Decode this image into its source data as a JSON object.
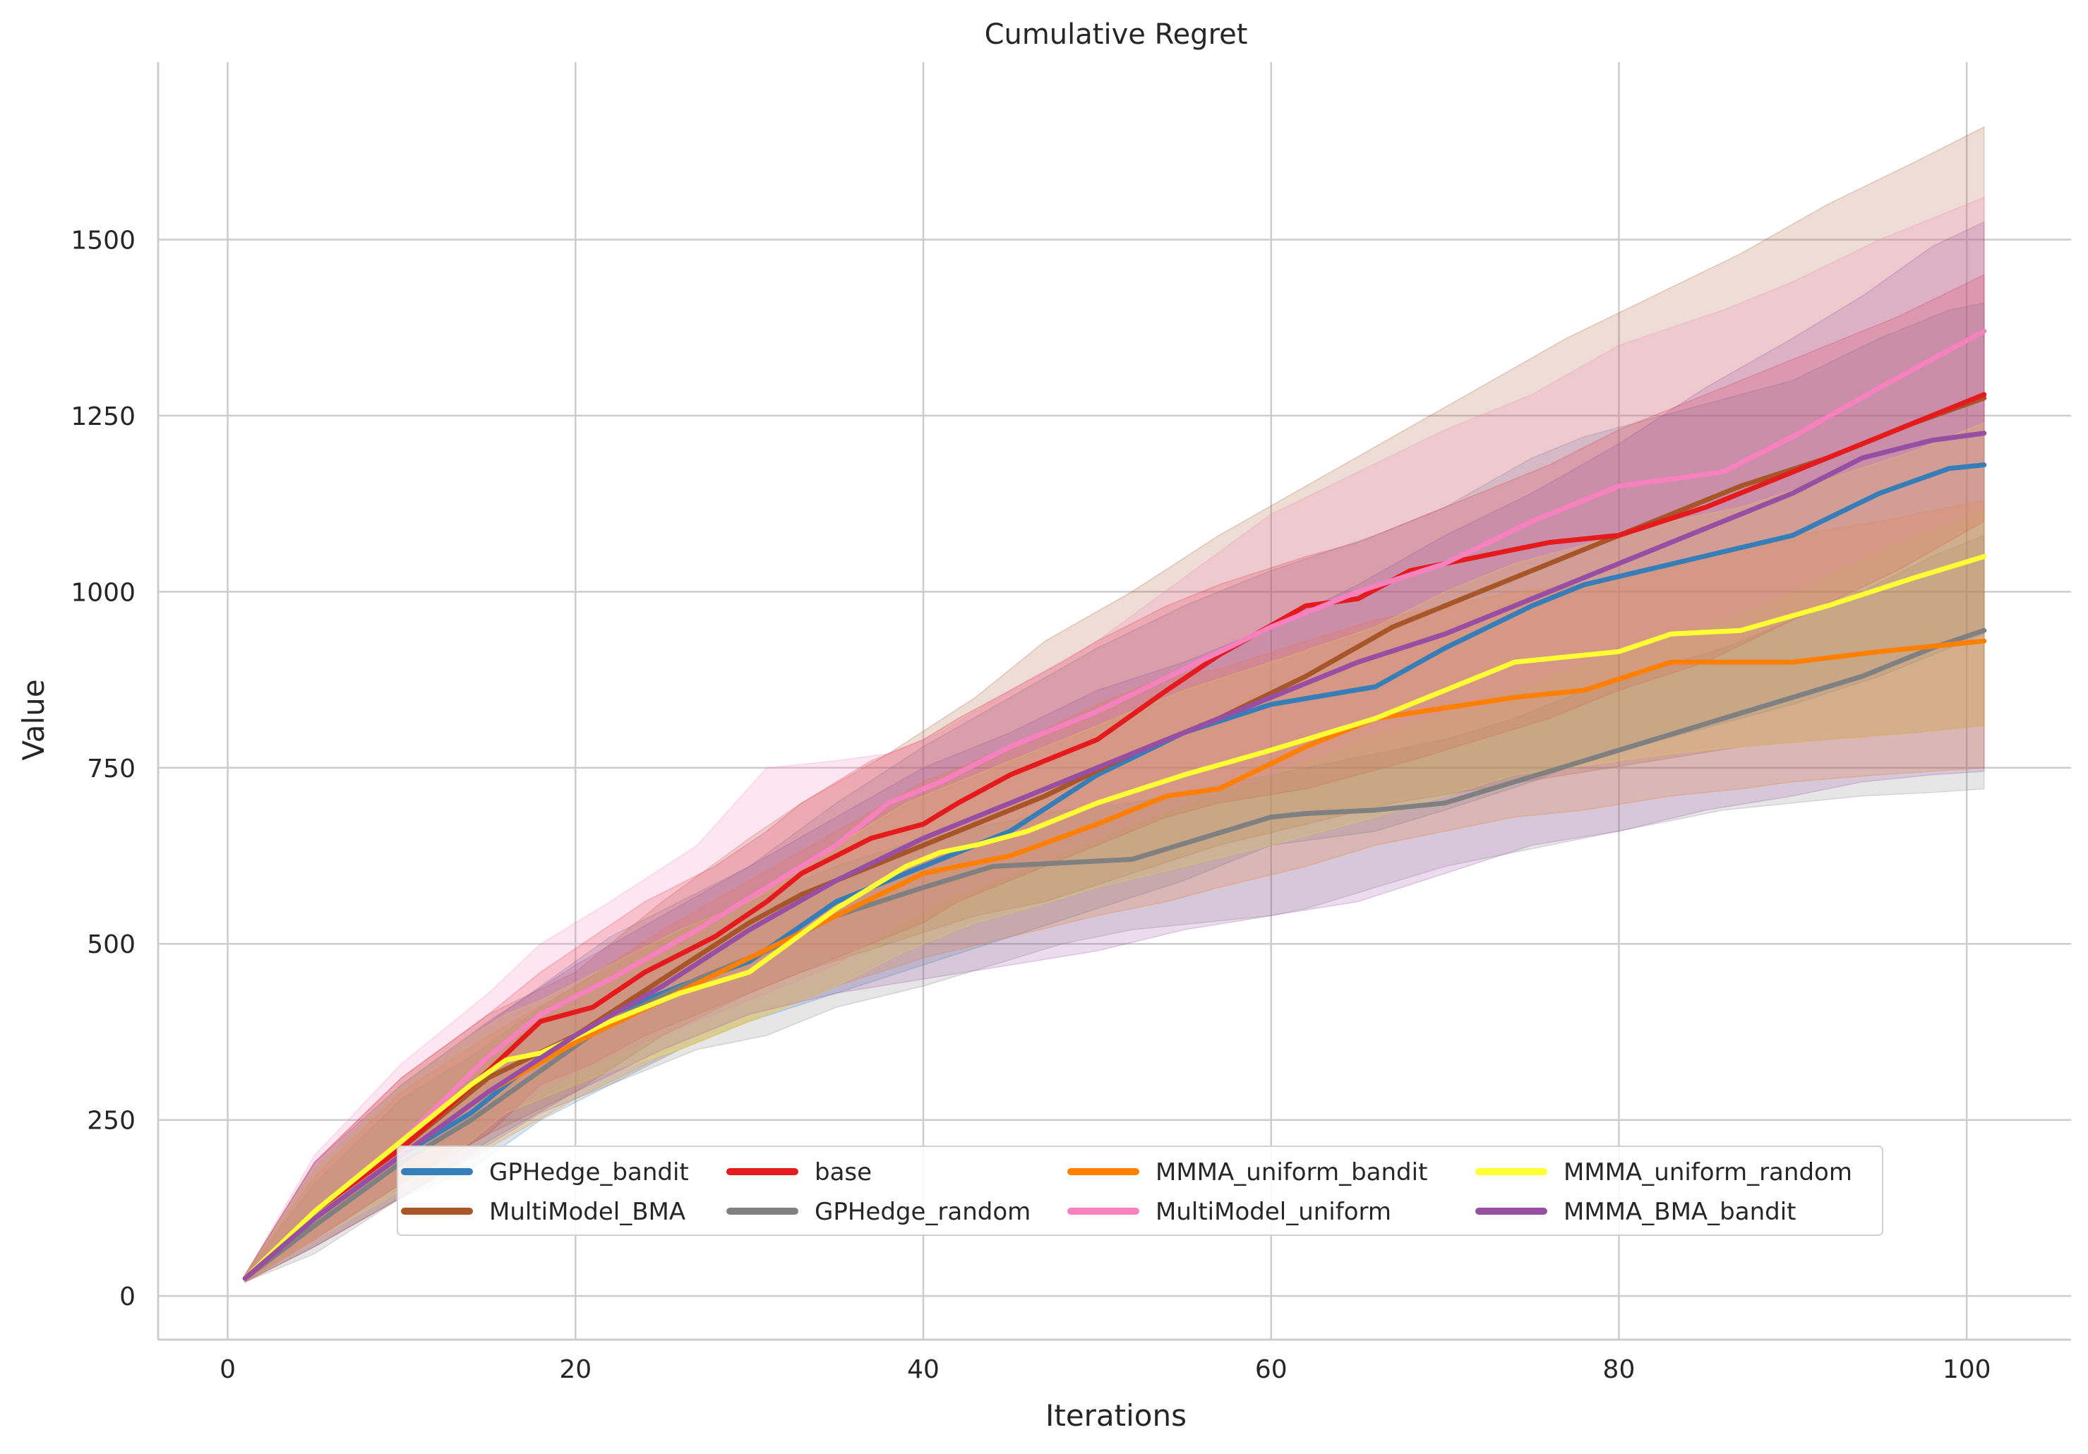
{
  "chart_data": {
    "type": "line",
    "title": "Cumulative Regret",
    "xlabel": "Iterations",
    "ylabel": "Value",
    "xlim": [
      -4,
      106
    ],
    "ylim": [
      -62,
      1752
    ],
    "xticks": [
      0,
      20,
      40,
      60,
      80,
      100
    ],
    "yticks": [
      0,
      250,
      500,
      750,
      1000,
      1250,
      1500
    ],
    "grid": true,
    "legend_position": "lower-center",
    "legend_columns": 4,
    "series": [
      {
        "name": "GPHedge_bandit",
        "color": "#377eb8",
        "x": [
          1,
          5,
          10,
          14,
          18,
          22,
          26,
          30,
          35,
          40,
          45,
          50,
          55,
          60,
          66,
          70,
          75,
          78,
          84,
          90,
          95,
          99,
          101
        ],
        "y": [
          25,
          110,
          200,
          260,
          340,
          400,
          440,
          475,
          560,
          610,
          660,
          740,
          800,
          840,
          865,
          920,
          980,
          1010,
          1045,
          1080,
          1140,
          1175,
          1180
        ],
        "upper": [
          30,
          180,
          300,
          370,
          440,
          510,
          560,
          610,
          700,
          780,
          850,
          920,
          980,
          1030,
          1080,
          1120,
          1190,
          1220,
          1260,
          1300,
          1360,
          1400,
          1410
        ],
        "lower": [
          20,
          70,
          140,
          180,
          250,
          300,
          350,
          390,
          430,
          470,
          510,
          550,
          590,
          640,
          660,
          690,
          730,
          760,
          800,
          840,
          880,
          920,
          940
        ]
      },
      {
        "name": "MultiModel_BMA",
        "color": "#a65628",
        "x": [
          1,
          5,
          10,
          15,
          20,
          25,
          30,
          33,
          38,
          43,
          47,
          52,
          57,
          62,
          67,
          72,
          77,
          82,
          87,
          92,
          97,
          101
        ],
        "y": [
          25,
          120,
          210,
          310,
          370,
          450,
          530,
          570,
          620,
          670,
          710,
          770,
          820,
          880,
          950,
          1000,
          1050,
          1100,
          1150,
          1190,
          1240,
          1275
        ],
        "upper": [
          30,
          190,
          310,
          400,
          460,
          560,
          650,
          700,
          770,
          850,
          930,
          1000,
          1080,
          1150,
          1220,
          1290,
          1360,
          1420,
          1480,
          1550,
          1610,
          1660
        ],
        "lower": [
          20,
          80,
          160,
          230,
          290,
          370,
          430,
          460,
          500,
          540,
          560,
          600,
          640,
          670,
          700,
          720,
          740,
          760,
          780,
          790,
          800,
          810
        ]
      },
      {
        "name": "base",
        "color": "#e41a1c",
        "x": [
          1,
          5,
          10,
          15,
          18,
          21,
          24,
          28,
          31,
          33,
          37,
          40,
          42,
          45,
          48,
          50,
          54,
          57,
          62,
          65,
          68,
          72,
          76,
          80,
          85,
          90,
          96,
          101
        ],
        "y": [
          25,
          120,
          210,
          320,
          390,
          410,
          460,
          510,
          560,
          600,
          650,
          670,
          700,
          740,
          770,
          790,
          860,
          910,
          980,
          990,
          1030,
          1050,
          1070,
          1080,
          1120,
          1170,
          1230,
          1280
        ],
        "upper": [
          30,
          190,
          310,
          400,
          460,
          510,
          560,
          610,
          660,
          700,
          760,
          790,
          820,
          860,
          900,
          930,
          980,
          1010,
          1050,
          1070,
          1100,
          1140,
          1180,
          1230,
          1280,
          1330,
          1390,
          1450
        ],
        "lower": [
          20,
          80,
          160,
          230,
          300,
          330,
          370,
          410,
          440,
          460,
          500,
          530,
          560,
          590,
          620,
          640,
          680,
          700,
          720,
          740,
          760,
          790,
          820,
          860,
          900,
          960,
          1030,
          1100
        ]
      },
      {
        "name": "GPHedge_random",
        "color": "#808080",
        "x": [
          1,
          5,
          10,
          14,
          18,
          22,
          27,
          31,
          35,
          40,
          44,
          48,
          52,
          56,
          60,
          62,
          66,
          70,
          74,
          78,
          82,
          86,
          90,
          94,
          98,
          101
        ],
        "y": [
          25,
          100,
          190,
          250,
          320,
          390,
          450,
          490,
          540,
          580,
          610,
          615,
          620,
          650,
          680,
          685,
          690,
          700,
          730,
          760,
          790,
          820,
          850,
          880,
          920,
          945
        ],
        "upper": [
          30,
          160,
          280,
          340,
          410,
          470,
          530,
          570,
          610,
          650,
          670,
          690,
          700,
          720,
          740,
          750,
          770,
          790,
          820,
          860,
          890,
          920,
          960,
          1000,
          1050,
          1080
        ],
        "lower": [
          20,
          60,
          140,
          200,
          260,
          300,
          350,
          370,
          410,
          440,
          470,
          500,
          520,
          530,
          540,
          550,
          580,
          610,
          630,
          650,
          670,
          690,
          700,
          710,
          715,
          720
        ]
      },
      {
        "name": "MMMA_uniform_bandit",
        "color": "#ff7f00",
        "x": [
          1,
          5,
          10,
          15,
          20,
          25,
          30,
          35,
          40,
          45,
          50,
          54,
          57,
          62,
          66,
          70,
          74,
          78,
          83,
          87,
          90,
          95,
          101
        ],
        "y": [
          25,
          110,
          200,
          290,
          360,
          420,
          480,
          540,
          600,
          625,
          670,
          710,
          720,
          780,
          820,
          835,
          850,
          860,
          900,
          900,
          900,
          915,
          930
        ],
        "upper": [
          30,
          170,
          290,
          370,
          440,
          520,
          590,
          660,
          730,
          780,
          840,
          880,
          890,
          930,
          960,
          980,
          1000,
          1010,
          1040,
          1060,
          1080,
          1100,
          1130
        ],
        "lower": [
          20,
          70,
          140,
          210,
          280,
          340,
          390,
          440,
          480,
          510,
          540,
          560,
          580,
          610,
          640,
          660,
          680,
          690,
          710,
          720,
          730,
          740,
          750
        ]
      },
      {
        "name": "MultiModel_uniform",
        "color": "#f781bf",
        "x": [
          1,
          5,
          10,
          15,
          18,
          22,
          27,
          31,
          35,
          38,
          41,
          45,
          50,
          55,
          60,
          65,
          70,
          75,
          80,
          86,
          90,
          95,
          101
        ],
        "y": [
          25,
          120,
          220,
          340,
          400,
          450,
          520,
          580,
          640,
          700,
          730,
          780,
          830,
          890,
          950,
          1000,
          1040,
          1100,
          1150,
          1170,
          1220,
          1290,
          1370
        ],
        "upper": [
          30,
          200,
          330,
          430,
          500,
          560,
          640,
          750,
          760,
          770,
          800,
          860,
          930,
          1020,
          1110,
          1170,
          1230,
          1280,
          1350,
          1400,
          1440,
          1500,
          1560
        ],
        "lower": [
          20,
          80,
          160,
          240,
          290,
          340,
          390,
          430,
          470,
          520,
          560,
          600,
          650,
          700,
          740,
          790,
          830,
          870,
          920,
          960,
          1000,
          1060,
          1120
        ]
      },
      {
        "name": "MMMA_uniform_random",
        "color": "#ffff33",
        "x": [
          1,
          5,
          10,
          14,
          16,
          18,
          22,
          26,
          30,
          35,
          39,
          41,
          43,
          46,
          50,
          55,
          60,
          66,
          70,
          74,
          80,
          83,
          87,
          92,
          97,
          101
        ],
        "y": [
          25,
          120,
          220,
          300,
          335,
          345,
          390,
          430,
          460,
          550,
          610,
          630,
          640,
          660,
          700,
          740,
          775,
          820,
          860,
          900,
          915,
          940,
          945,
          980,
          1020,
          1050
        ],
        "upper": [
          30,
          180,
          300,
          370,
          400,
          420,
          470,
          520,
          560,
          640,
          700,
          720,
          740,
          770,
          810,
          860,
          900,
          950,
          1000,
          1040,
          1080,
          1100,
          1120,
          1160,
          1200,
          1240
        ],
        "lower": [
          20,
          80,
          150,
          220,
          260,
          280,
          320,
          350,
          390,
          440,
          490,
          510,
          530,
          550,
          580,
          610,
          640,
          680,
          710,
          740,
          760,
          770,
          780,
          790,
          800,
          810
        ]
      },
      {
        "name": "MMMA_BMA_bandit",
        "color": "#984ea3",
        "x": [
          1,
          5,
          10,
          15,
          20,
          25,
          30,
          35,
          40,
          45,
          50,
          55,
          60,
          65,
          70,
          75,
          80,
          85,
          90,
          94,
          98,
          101
        ],
        "y": [
          25,
          110,
          200,
          290,
          370,
          440,
          520,
          590,
          650,
          700,
          750,
          800,
          850,
          900,
          940,
          990,
          1040,
          1090,
          1140,
          1190,
          1215,
          1225
        ],
        "upper": [
          30,
          190,
          300,
          390,
          470,
          540,
          610,
          680,
          750,
          800,
          860,
          900,
          950,
          1010,
          1080,
          1140,
          1210,
          1290,
          1360,
          1420,
          1490,
          1525
        ],
        "lower": [
          20,
          70,
          140,
          220,
          290,
          350,
          400,
          430,
          450,
          470,
          490,
          520,
          540,
          560,
          600,
          640,
          660,
          690,
          710,
          730,
          740,
          745
        ]
      }
    ]
  }
}
